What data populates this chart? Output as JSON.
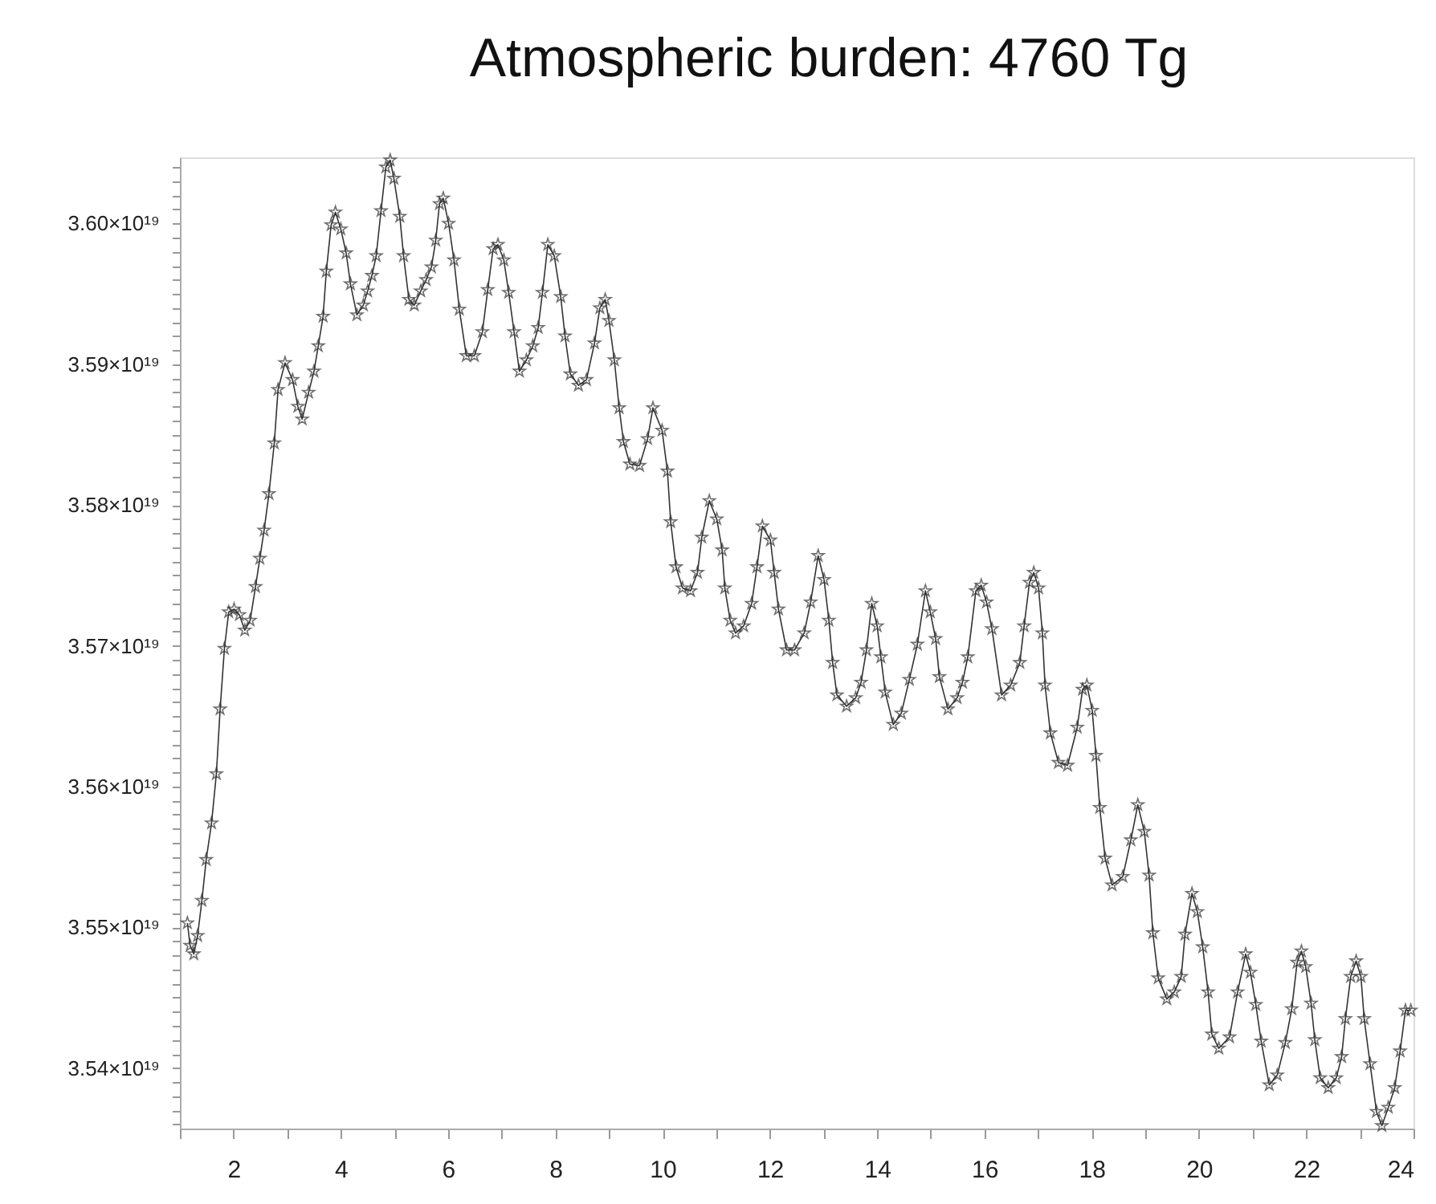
{
  "chart_data": {
    "type": "line",
    "title": "Atmospheric burden: 4760 Tg",
    "marker": "star",
    "line_style": "solid",
    "xlim": [
      1,
      24
    ],
    "xticks": [
      {
        "value": 1,
        "label": null
      },
      2,
      {
        "value": 3,
        "label": null
      },
      4,
      {
        "value": 5,
        "label": null
      },
      6,
      {
        "value": 7,
        "label": null
      },
      8,
      {
        "value": 9,
        "label": null
      },
      10,
      {
        "value": 11,
        "label": null
      },
      12,
      {
        "value": 13,
        "label": null
      },
      14,
      {
        "value": 15,
        "label": null
      },
      16,
      {
        "value": 17,
        "label": null
      },
      18,
      {
        "value": 19,
        "label": null
      },
      20,
      {
        "value": 21,
        "label": null
      },
      22,
      {
        "value": 23,
        "label": null
      },
      24
    ],
    "ylim": [
      3.5357e+19,
      3.6047e+19
    ],
    "yticks": [
      {
        "value": 3.536e+19,
        "label": null
      },
      {
        "value": 3.537e+19,
        "label": null
      },
      {
        "value": 3.538e+19,
        "label": null
      },
      {
        "value": 3.539e+19,
        "label": null
      },
      {
        "value": 3.54e+19,
        "label": "3.54×10¹⁹"
      },
      {
        "value": 3.541e+19,
        "label": null
      },
      {
        "value": 3.542e+19,
        "label": null
      },
      {
        "value": 3.543e+19,
        "label": null
      },
      {
        "value": 3.544e+19,
        "label": null
      },
      {
        "value": 3.545e+19,
        "label": null
      },
      {
        "value": 3.546e+19,
        "label": null
      },
      {
        "value": 3.547e+19,
        "label": null
      },
      {
        "value": 3.548e+19,
        "label": null
      },
      {
        "value": 3.549e+19,
        "label": null
      },
      {
        "value": 3.55e+19,
        "label": "3.55×10¹⁹"
      },
      {
        "value": 3.551e+19,
        "label": null
      },
      {
        "value": 3.552e+19,
        "label": null
      },
      {
        "value": 3.553e+19,
        "label": null
      },
      {
        "value": 3.554e+19,
        "label": null
      },
      {
        "value": 3.555e+19,
        "label": null
      },
      {
        "value": 3.556e+19,
        "label": null
      },
      {
        "value": 3.557e+19,
        "label": null
      },
      {
        "value": 3.558e+19,
        "label": null
      },
      {
        "value": 3.559e+19,
        "label": null
      },
      {
        "value": 3.56e+19,
        "label": "3.56×10¹⁹"
      },
      {
        "value": 3.561e+19,
        "label": null
      },
      {
        "value": 3.562e+19,
        "label": null
      },
      {
        "value": 3.563e+19,
        "label": null
      },
      {
        "value": 3.564e+19,
        "label": null
      },
      {
        "value": 3.565e+19,
        "label": null
      },
      {
        "value": 3.566e+19,
        "label": null
      },
      {
        "value": 3.567e+19,
        "label": null
      },
      {
        "value": 3.568e+19,
        "label": null
      },
      {
        "value": 3.569e+19,
        "label": null
      },
      {
        "value": 3.57e+19,
        "label": "3.57×10¹⁹"
      },
      {
        "value": 3.571e+19,
        "label": null
      },
      {
        "value": 3.572e+19,
        "label": null
      },
      {
        "value": 3.573e+19,
        "label": null
      },
      {
        "value": 3.574e+19,
        "label": null
      },
      {
        "value": 3.575e+19,
        "label": null
      },
      {
        "value": 3.576e+19,
        "label": null
      },
      {
        "value": 3.577e+19,
        "label": null
      },
      {
        "value": 3.578e+19,
        "label": null
      },
      {
        "value": 3.579e+19,
        "label": null
      },
      {
        "value": 3.58e+19,
        "label": "3.58×10¹⁹"
      },
      {
        "value": 3.581e+19,
        "label": null
      },
      {
        "value": 3.582e+19,
        "label": null
      },
      {
        "value": 3.583e+19,
        "label": null
      },
      {
        "value": 3.584e+19,
        "label": null
      },
      {
        "value": 3.585e+19,
        "label": null
      },
      {
        "value": 3.586e+19,
        "label": null
      },
      {
        "value": 3.587e+19,
        "label": null
      },
      {
        "value": 3.588e+19,
        "label": null
      },
      {
        "value": 3.589e+19,
        "label": null
      },
      {
        "value": 3.59e+19,
        "label": "3.59×10¹⁹"
      },
      {
        "value": 3.591e+19,
        "label": null
      },
      {
        "value": 3.592e+19,
        "label": null
      },
      {
        "value": 3.593e+19,
        "label": null
      },
      {
        "value": 3.594e+19,
        "label": null
      },
      {
        "value": 3.595e+19,
        "label": null
      },
      {
        "value": 3.596e+19,
        "label": null
      },
      {
        "value": 3.597e+19,
        "label": null
      },
      {
        "value": 3.598e+19,
        "label": null
      },
      {
        "value": 3.599e+19,
        "label": null
      },
      {
        "value": 3.6e+19,
        "label": "3.60×10¹⁹"
      },
      {
        "value": 3.601e+19,
        "label": null
      },
      {
        "value": 3.602e+19,
        "label": null
      },
      {
        "value": 3.603e+19,
        "label": null
      },
      {
        "value": 3.604e+19,
        "label": null
      }
    ],
    "x": [
      1.14,
      1.19,
      1.26,
      1.33,
      1.41,
      1.49,
      1.59,
      1.68,
      1.75,
      1.83,
      1.91,
      2.01,
      2.11,
      2.21,
      2.31,
      2.41,
      2.49,
      2.57,
      2.66,
      2.76,
      2.83,
      2.96,
      3.1,
      3.2,
      3.28,
      3.4,
      3.5,
      3.58,
      3.67,
      3.73,
      3.82,
      3.9,
      4.0,
      4.1,
      4.18,
      4.3,
      4.42,
      4.5,
      4.58,
      4.66,
      4.75,
      4.84,
      4.92,
      4.99,
      5.1,
      5.17,
      5.27,
      5.37,
      5.49,
      5.59,
      5.69,
      5.77,
      5.84,
      5.91,
      6.01,
      6.11,
      6.21,
      6.34,
      6.49,
      6.64,
      6.74,
      6.84,
      6.93,
      7.04,
      7.13,
      7.23,
      7.33,
      7.46,
      7.58,
      7.68,
      7.76,
      7.86,
      7.98,
      8.1,
      8.18,
      8.28,
      8.43,
      8.58,
      8.73,
      8.83,
      8.93,
      9.0,
      9.1,
      9.19,
      9.27,
      9.39,
      9.57,
      9.72,
      9.82,
      9.99,
      10.09,
      10.15,
      10.25,
      10.37,
      10.52,
      10.65,
      10.73,
      10.87,
      11.01,
      11.11,
      11.16,
      11.26,
      11.36,
      11.51,
      11.66,
      11.76,
      11.86,
      12.01,
      12.08,
      12.16,
      12.31,
      12.46,
      12.64,
      12.76,
      12.9,
      13.01,
      13.1,
      13.17,
      13.25,
      13.43,
      13.6,
      13.7,
      13.8,
      13.9,
      14.0,
      14.07,
      14.15,
      14.3,
      14.45,
      14.6,
      14.75,
      14.9,
      14.99,
      15.09,
      15.16,
      15.32,
      15.49,
      15.59,
      15.69,
      15.84,
      15.94,
      16.04,
      16.14,
      16.32,
      16.49,
      16.66,
      16.74,
      16.84,
      16.92,
      17.01,
      17.08,
      17.13,
      17.23,
      17.38,
      17.55,
      17.73,
      17.83,
      17.91,
      18.01,
      18.08,
      18.15,
      18.25,
      18.38,
      18.58,
      18.73,
      18.86,
      18.98,
      19.07,
      19.14,
      19.24,
      19.4,
      19.54,
      19.67,
      19.74,
      19.87,
      19.97,
      20.07,
      20.17,
      20.24,
      20.37,
      20.57,
      20.72,
      20.87,
      20.96,
      21.06,
      21.16,
      21.31,
      21.46,
      21.61,
      21.73,
      21.83,
      21.91,
      21.99,
      22.09,
      22.16,
      22.26,
      22.41,
      22.56,
      22.66,
      22.73,
      22.83,
      22.93,
      23.02,
      23.08,
      23.19,
      23.31,
      23.41,
      23.53,
      23.65,
      23.75,
      23.85,
      23.95
    ],
    "series": [
      {
        "color": "#333333",
        "values": [
          3.5503e+19,
          3.5487e+19,
          3.5481e+19,
          3.5494e+19,
          3.5519e+19,
          3.5548e+19,
          3.5574e+19,
          3.5609e+19,
          3.5655e+19,
          3.5698e+19,
          3.5724e+19,
          3.5726e+19,
          3.5722e+19,
          3.5711e+19,
          3.5718e+19,
          3.5742e+19,
          3.5762e+19,
          3.5782e+19,
          3.5808e+19,
          3.5844e+19,
          3.5882e+19,
          3.5901e+19,
          3.5889e+19,
          3.587e+19,
          3.5861e+19,
          3.588e+19,
          3.5895e+19,
          3.5913e+19,
          3.5934e+19,
          3.5966e+19,
          3.5999e+19,
          3.6008e+19,
          3.5996e+19,
          3.5979e+19,
          3.5957e+19,
          3.5935e+19,
          3.5942e+19,
          3.5952e+19,
          3.5963e+19,
          3.5977e+19,
          3.6009e+19,
          3.604e+19,
          3.6045e+19,
          3.6032e+19,
          3.6005e+19,
          3.5977e+19,
          3.5946e+19,
          3.5942e+19,
          3.5952e+19,
          3.596e+19,
          3.5969e+19,
          3.5988e+19,
          3.6014e+19,
          3.6018e+19,
          3.6e+19,
          3.5974e+19,
          3.5939e+19,
          3.5906e+19,
          3.5906e+19,
          3.5923e+19,
          3.5953e+19,
          3.5982e+19,
          3.5985e+19,
          3.5974e+19,
          3.5951e+19,
          3.5923e+19,
          3.5895e+19,
          3.5903e+19,
          3.5913e+19,
          3.5926e+19,
          3.5951e+19,
          3.5985e+19,
          3.5977e+19,
          3.5948e+19,
          3.592e+19,
          3.5893e+19,
          3.5885e+19,
          3.5889e+19,
          3.5915e+19,
          3.594e+19,
          3.5946e+19,
          3.5931e+19,
          3.5903e+19,
          3.5869e+19,
          3.5845e+19,
          3.5829e+19,
          3.5828e+19,
          3.5847e+19,
          3.5869e+19,
          3.5853e+19,
          3.5824e+19,
          3.5788e+19,
          3.5756e+19,
          3.5741e+19,
          3.5739e+19,
          3.5752e+19,
          3.5777e+19,
          3.5803e+19,
          3.579e+19,
          3.5768e+19,
          3.5741e+19,
          3.5718e+19,
          3.5709e+19,
          3.5714e+19,
          3.573e+19,
          3.5756e+19,
          3.5785e+19,
          3.5775e+19,
          3.5752e+19,
          3.5726e+19,
          3.5697e+19,
          3.5697e+19,
          3.5709e+19,
          3.5731e+19,
          3.5764e+19,
          3.5747e+19,
          3.5718e+19,
          3.5688e+19,
          3.5665e+19,
          3.5657e+19,
          3.5663e+19,
          3.5674e+19,
          3.5697e+19,
          3.573e+19,
          3.5714e+19,
          3.5692e+19,
          3.5667e+19,
          3.5644e+19,
          3.5652e+19,
          3.5676e+19,
          3.5701e+19,
          3.5739e+19,
          3.5724e+19,
          3.5705e+19,
          3.5678e+19,
          3.5655e+19,
          3.5663e+19,
          3.5674e+19,
          3.5692e+19,
          3.5739e+19,
          3.5743e+19,
          3.5731e+19,
          3.5712e+19,
          3.5665e+19,
          3.5672e+19,
          3.5688e+19,
          3.5714e+19,
          3.5745e+19,
          3.5752e+19,
          3.5741e+19,
          3.5709e+19,
          3.5672e+19,
          3.5638e+19,
          3.5617e+19,
          3.5615e+19,
          3.5642e+19,
          3.5669e+19,
          3.5672e+19,
          3.5654e+19,
          3.5622e+19,
          3.5585e+19,
          3.5549e+19,
          3.553e+19,
          3.5536e+19,
          3.5562e+19,
          3.5587e+19,
          3.5568e+19,
          3.5537e+19,
          3.5496e+19,
          3.5464e+19,
          3.5449e+19,
          3.5454e+19,
          3.5465e+19,
          3.5495e+19,
          3.5524e+19,
          3.5511e+19,
          3.5486e+19,
          3.5454e+19,
          3.5424e+19,
          3.5414e+19,
          3.5422e+19,
          3.5454e+19,
          3.5481e+19,
          3.5468e+19,
          3.5445e+19,
          3.5419e+19,
          3.5388e+19,
          3.5395e+19,
          3.5418e+19,
          3.5442e+19,
          3.5475e+19,
          3.5483e+19,
          3.5472e+19,
          3.5446e+19,
          3.542e+19,
          3.5393e+19,
          3.5386e+19,
          3.5393e+19,
          3.5408e+19,
          3.5435e+19,
          3.5465e+19,
          3.5476e+19,
          3.5465e+19,
          3.5435e+19,
          3.5403e+19,
          3.5369e+19,
          3.5359e+19,
          3.5372e+19,
          3.5386e+19,
          3.5412e+19,
          3.5441e+19,
          3.5441e+19
        ]
      }
    ]
  }
}
